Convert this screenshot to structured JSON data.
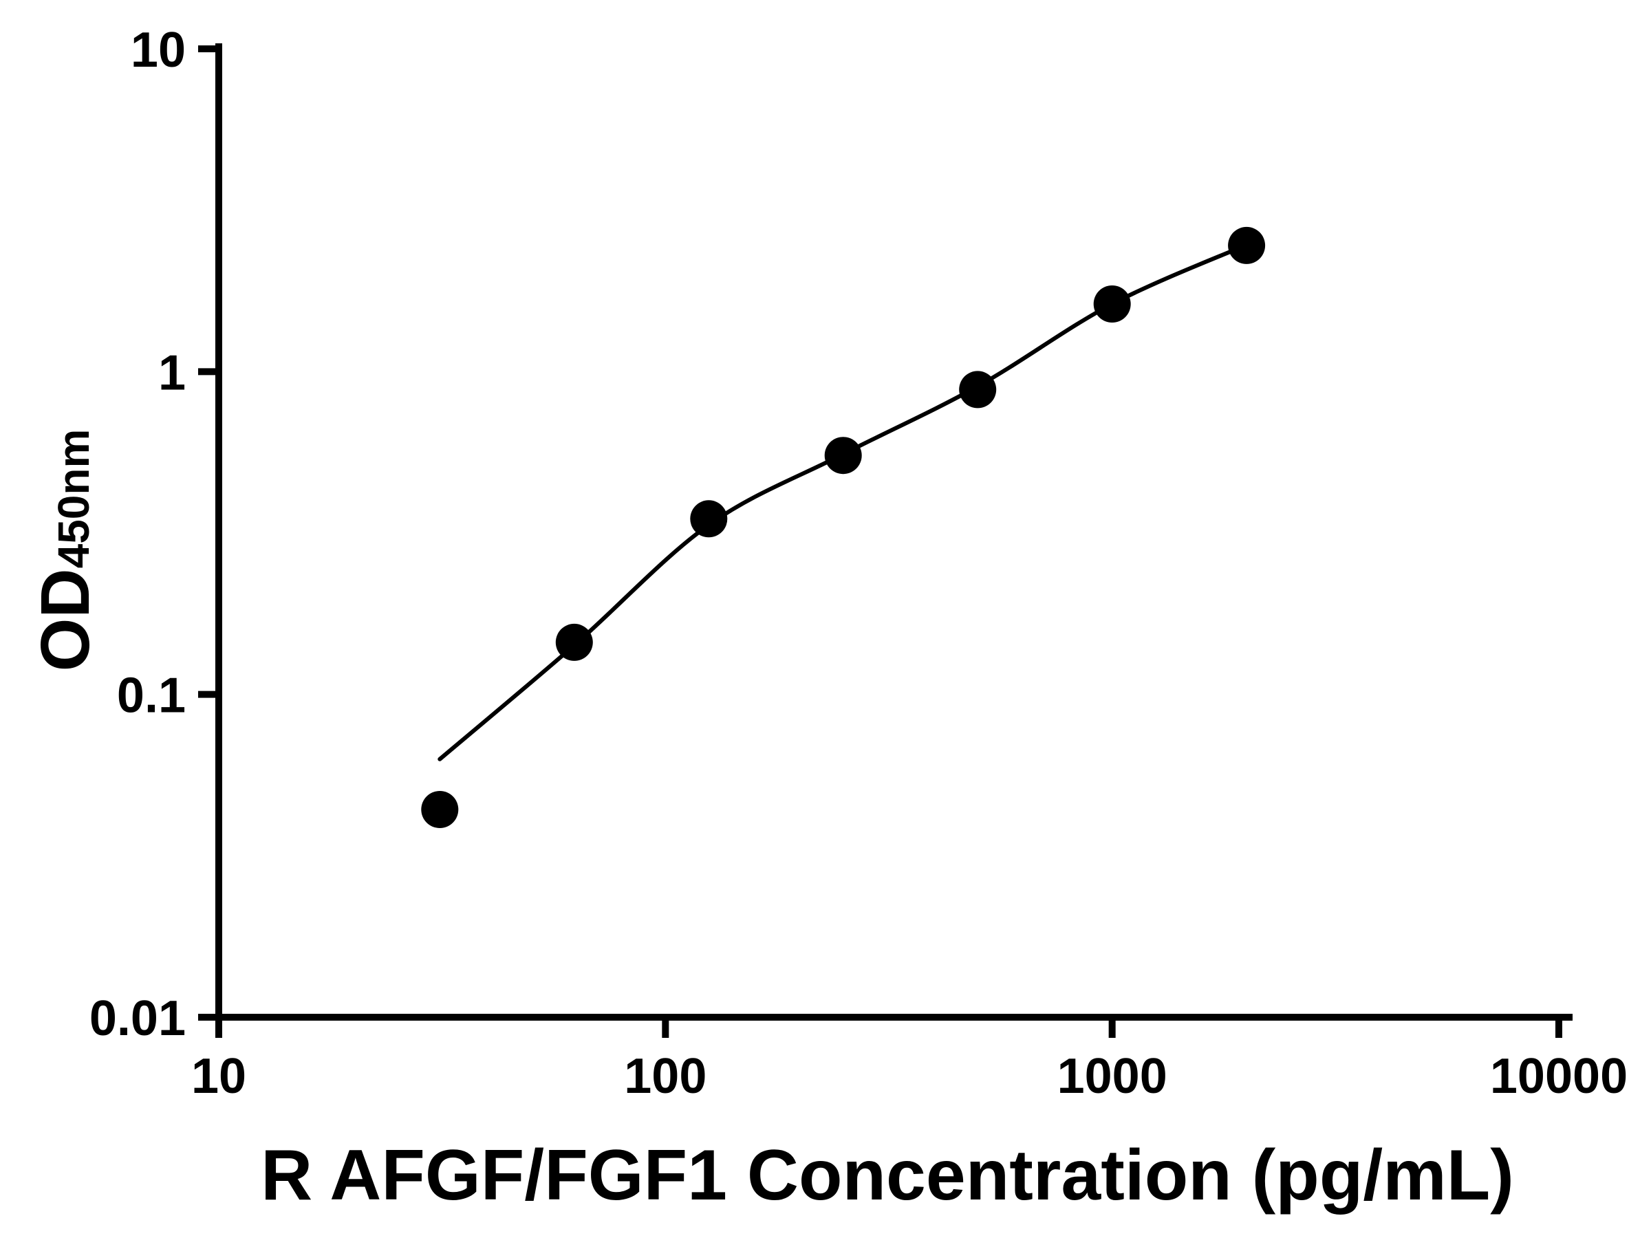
{
  "chart_data": {
    "type": "scatter",
    "title": "",
    "xlabel": "R AFGF/FGF1 Concentration (pg/mL)",
    "ylabel": "OD",
    "ylabel_subscript": "450nm",
    "x_scale": "log",
    "y_scale": "log",
    "xlim": [
      10,
      10000
    ],
    "ylim": [
      0.01,
      10
    ],
    "x_ticks": [
      10,
      100,
      1000,
      10000
    ],
    "x_tick_labels": [
      "10",
      "100",
      "1000",
      "10000"
    ],
    "y_ticks": [
      0.01,
      0.1,
      1,
      10
    ],
    "y_tick_labels": [
      "0.01",
      "0.1",
      "1",
      "10"
    ],
    "grid": false,
    "legend": "none",
    "axis_color": "#000000",
    "series": [
      {
        "name": "standard-curve-points",
        "marker": "circle",
        "color": "#000000",
        "x": [
          31.25,
          62.5,
          125,
          250,
          500,
          1000,
          2000
        ],
        "y": [
          0.044,
          0.145,
          0.35,
          0.55,
          0.88,
          1.62,
          2.46
        ]
      }
    ],
    "fit_curve": {
      "name": "fitted-curve",
      "color": "#000000",
      "x": [
        31.25,
        62.5,
        125,
        250,
        500,
        1000,
        2000
      ],
      "y": [
        0.063,
        0.142,
        0.335,
        0.555,
        0.9,
        1.62,
        2.47
      ]
    }
  }
}
